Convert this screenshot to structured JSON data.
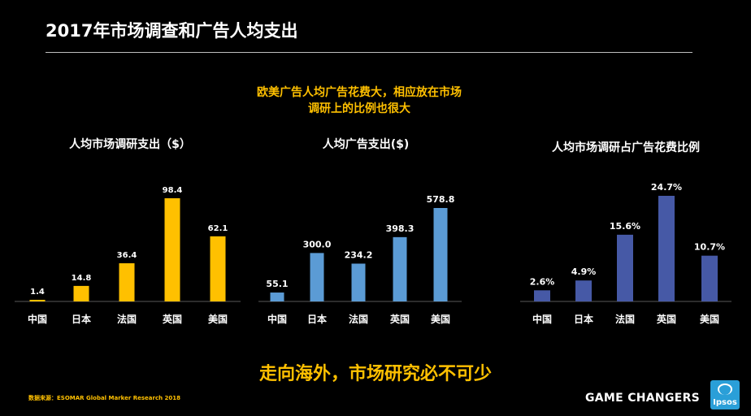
{
  "header": {
    "title": "2017年市场调查和广告人均支出"
  },
  "subtitle": {
    "line1": "欧美广告人均广告花费大，相应放在市场",
    "line2": "调研上的比例也很大"
  },
  "tagline": "走向海外，市场研究必不可少",
  "footer": {
    "source_label": "数据来源：",
    "source_text": "ESOMAR Global Marker Research 2018",
    "brand": "GAME CHANGERS",
    "logo_text": "Ipsos"
  },
  "colors": {
    "accent": "#FFC000",
    "chart1": "#FFC000",
    "chart2": "#5B9BD5",
    "chart3": "#4659A6",
    "logo_bg": "#2A9FD8"
  },
  "chart_data": [
    {
      "type": "bar",
      "title": "人均市场调研支出（$）",
      "categories": [
        "中国",
        "日本",
        "法国",
        "英国",
        "美国"
      ],
      "values": [
        1.4,
        14.8,
        36.4,
        98.4,
        62.1
      ],
      "labels": [
        "1.4",
        "14.8",
        "36.4",
        "98.4",
        "62.1"
      ],
      "ylim": [
        0,
        100
      ]
    },
    {
      "type": "bar",
      "title": "人均广告支出($)",
      "categories": [
        "中国",
        "日本",
        "法国",
        "英国",
        "美国"
      ],
      "values": [
        55.1,
        300.0,
        234.2,
        398.3,
        578.8
      ],
      "labels": [
        "55.1",
        "300.0",
        "234.2",
        "398.3",
        "578.8"
      ],
      "ylim": [
        0,
        600
      ]
    },
    {
      "type": "bar",
      "title": "人均市场调研占广告花费比例",
      "categories": [
        "中国",
        "日本",
        "法国",
        "英国",
        "美国"
      ],
      "values": [
        2.6,
        4.9,
        15.6,
        24.7,
        10.7
      ],
      "labels": [
        "2.6%",
        "4.9%",
        "15.6%",
        "24.7%",
        "10.7%"
      ],
      "ylim": [
        0,
        25
      ]
    }
  ]
}
